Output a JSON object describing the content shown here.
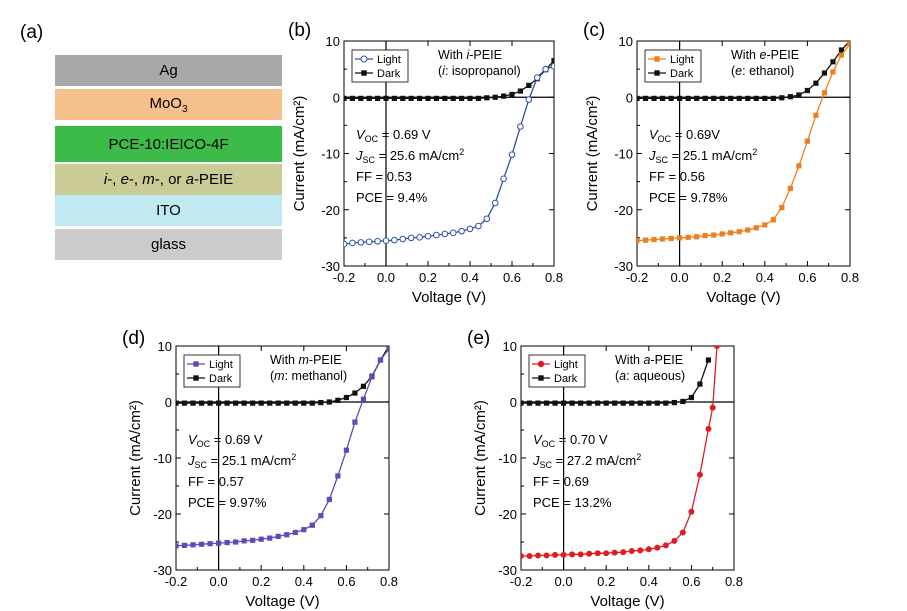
{
  "panel_labels": [
    "(a)",
    "(b)",
    "(c)",
    "(d)",
    "(e)"
  ],
  "device_stack": {
    "layers": [
      {
        "name": "Ag",
        "color": "#a8a8a8"
      },
      {
        "name": "MoO3",
        "color": "#f6c08c"
      },
      {
        "name": "PCE-10:IEICO-4F",
        "color": "#3cba4a"
      },
      {
        "name": "i-, e-, m-, or a-PEIE",
        "color": "#cbcb96"
      },
      {
        "name": "ITO",
        "color": "#c0e9f2"
      },
      {
        "name": "glass",
        "color": "#cbcbcb"
      }
    ],
    "moo3_base": "MoO",
    "moo3_sub": "3",
    "peie_prefix_1": "i",
    "peie_sep_1": "-, ",
    "peie_prefix_2": "e",
    "peie_sep_2": "-, ",
    "peie_prefix_3": "m",
    "peie_sep_3": "-, or ",
    "peie_prefix_4": "a",
    "peie_suffix": "-PEIE"
  },
  "chart_data": [
    {
      "panel": "(b)",
      "type": "line",
      "xlabel": "Voltage (V)",
      "ylabel": "Current (mA/cm²)",
      "xlim": [
        -0.2,
        0.8
      ],
      "ylim": [
        -30,
        10
      ],
      "xticks": [
        -0.2,
        0.0,
        0.2,
        0.4,
        0.6,
        0.8
      ],
      "xtick_labels": [
        "-0.2",
        "0.0",
        "0.2",
        "0.4",
        "0.6",
        "0.8"
      ],
      "yticks": [
        -30,
        -20,
        -10,
        0,
        10
      ],
      "ytick_labels": [
        "-30",
        "-20",
        "-10",
        "0",
        "10"
      ],
      "legend": [
        "Light",
        "Dark"
      ],
      "annotation": {
        "title_prefix": "With ",
        "title_italic": "i",
        "title_suffix": "-PEIE",
        "solvent_italic": "i",
        "solvent_text": ": isopropanol"
      },
      "params": {
        "voc": "= 0.69 V",
        "jsc": "= 25.6 mA/cm",
        "ff": "FF = 0.53",
        "pce": "PCE = 9.4%"
      },
      "light_color": "#2e4fa8",
      "light_marker": "open-circle",
      "series": [
        {
          "name": "Light",
          "x": [
            -0.2,
            -0.16,
            -0.12,
            -0.08,
            -0.04,
            0.0,
            0.04,
            0.08,
            0.12,
            0.16,
            0.2,
            0.24,
            0.28,
            0.32,
            0.36,
            0.4,
            0.44,
            0.48,
            0.52,
            0.56,
            0.6,
            0.64,
            0.68,
            0.72,
            0.76,
            0.8
          ],
          "values": [
            -26.1,
            -25.9,
            -25.8,
            -25.7,
            -25.6,
            -25.5,
            -25.4,
            -25.2,
            -25.0,
            -24.9,
            -24.7,
            -24.5,
            -24.3,
            -24.1,
            -23.8,
            -23.4,
            -22.9,
            -21.6,
            -18.8,
            -14.5,
            -10.2,
            -5.2,
            -0.4,
            3.5,
            5.0,
            5.5
          ]
        },
        {
          "name": "Dark",
          "x": [
            -0.2,
            -0.16,
            -0.12,
            -0.08,
            -0.04,
            0.0,
            0.04,
            0.08,
            0.12,
            0.16,
            0.2,
            0.24,
            0.28,
            0.32,
            0.36,
            0.4,
            0.44,
            0.48,
            0.52,
            0.56,
            0.6,
            0.64,
            0.68,
            0.72,
            0.76,
            0.8
          ],
          "values": [
            -0.2,
            -0.2,
            -0.2,
            -0.2,
            -0.2,
            -0.2,
            -0.2,
            -0.2,
            -0.2,
            -0.2,
            -0.2,
            -0.2,
            -0.2,
            -0.2,
            -0.2,
            -0.2,
            -0.2,
            -0.1,
            0.0,
            0.2,
            0.5,
            1.1,
            2.1,
            3.3,
            4.9,
            6.5
          ]
        }
      ]
    },
    {
      "panel": "(c)",
      "type": "line",
      "xlabel": "Voltage (V)",
      "ylabel": "Current (mA/cm²)",
      "xlim": [
        -0.2,
        0.8
      ],
      "ylim": [
        -30,
        10
      ],
      "xticks": [
        -0.2,
        0.0,
        0.2,
        0.4,
        0.6,
        0.8
      ],
      "xtick_labels": [
        "-0.2",
        "0.0",
        "0.2",
        "0.4",
        "0.6",
        "0.8"
      ],
      "yticks": [
        -30,
        -20,
        -10,
        0,
        10
      ],
      "ytick_labels": [
        "-30",
        "-20",
        "-10",
        "0",
        "10"
      ],
      "legend": [
        "Light",
        "Dark"
      ],
      "annotation": {
        "title_prefix": "With ",
        "title_italic": "e",
        "title_suffix": "-PEIE",
        "solvent_italic": "e",
        "solvent_text": ": ethanol"
      },
      "params": {
        "voc": "= 0.69V",
        "jsc": "= 25.1 mA/cm",
        "ff": "FF = 0.56",
        "pce": "PCE = 9.78%"
      },
      "light_color": "#f07e1f",
      "light_marker": "filled-square",
      "series": [
        {
          "name": "Light",
          "x": [
            -0.2,
            -0.16,
            -0.12,
            -0.08,
            -0.04,
            0.0,
            0.04,
            0.08,
            0.12,
            0.16,
            0.2,
            0.24,
            0.28,
            0.32,
            0.36,
            0.4,
            0.44,
            0.48,
            0.52,
            0.56,
            0.6,
            0.64,
            0.68,
            0.72,
            0.76,
            0.8
          ],
          "values": [
            -25.5,
            -25.4,
            -25.3,
            -25.2,
            -25.1,
            -25.0,
            -24.9,
            -24.8,
            -24.6,
            -24.5,
            -24.3,
            -24.1,
            -23.9,
            -23.6,
            -23.2,
            -22.7,
            -21.8,
            -19.6,
            -16.2,
            -12.2,
            -7.8,
            -3.2,
            0.8,
            4.5,
            7.5,
            9.5
          ]
        },
        {
          "name": "Dark",
          "x": [
            -0.2,
            -0.16,
            -0.12,
            -0.08,
            -0.04,
            0.0,
            0.04,
            0.08,
            0.12,
            0.16,
            0.2,
            0.24,
            0.28,
            0.32,
            0.36,
            0.4,
            0.44,
            0.48,
            0.52,
            0.56,
            0.6,
            0.64,
            0.68,
            0.72,
            0.76,
            0.8
          ],
          "values": [
            -0.2,
            -0.2,
            -0.2,
            -0.2,
            -0.2,
            -0.2,
            -0.2,
            -0.2,
            -0.2,
            -0.2,
            -0.2,
            -0.2,
            -0.2,
            -0.2,
            -0.2,
            -0.2,
            -0.2,
            -0.1,
            0.1,
            0.4,
            1.2,
            2.5,
            4.3,
            6.3,
            8.4,
            10.0
          ]
        }
      ]
    },
    {
      "panel": "(d)",
      "type": "line",
      "xlabel": "Voltage (V)",
      "ylabel": "Current (mA/cm²)",
      "xlim": [
        -0.2,
        0.8
      ],
      "ylim": [
        -30,
        10
      ],
      "xticks": [
        -0.2,
        0.0,
        0.2,
        0.4,
        0.6,
        0.8
      ],
      "xtick_labels": [
        "-0.2",
        "0.0",
        "0.2",
        "0.4",
        "0.6",
        "0.8"
      ],
      "yticks": [
        -30,
        -20,
        -10,
        0,
        10
      ],
      "ytick_labels": [
        "-30",
        "-20",
        "-10",
        "0",
        "10"
      ],
      "legend": [
        "Light",
        "Dark"
      ],
      "annotation": {
        "title_prefix": "With ",
        "title_italic": "m",
        "title_suffix": "-PEIE",
        "solvent_italic": "m",
        "solvent_text": ": methanol"
      },
      "params": {
        "voc": "= 0.69 V",
        "jsc": "= 25.1 mA/cm",
        "ff": "FF = 0.57",
        "pce": "PCE = 9.97%"
      },
      "light_color": "#6248b8",
      "light_marker": "filled-square",
      "series": [
        {
          "name": "Light",
          "x": [
            -0.2,
            -0.16,
            -0.12,
            -0.08,
            -0.04,
            0.0,
            0.04,
            0.08,
            0.12,
            0.16,
            0.2,
            0.24,
            0.28,
            0.32,
            0.36,
            0.4,
            0.44,
            0.48,
            0.52,
            0.56,
            0.6,
            0.64,
            0.68,
            0.72,
            0.76,
            0.8
          ],
          "values": [
            -25.7,
            -25.6,
            -25.5,
            -25.4,
            -25.3,
            -25.2,
            -25.1,
            -25.0,
            -24.8,
            -24.7,
            -24.5,
            -24.3,
            -24.0,
            -23.7,
            -23.3,
            -22.8,
            -22.0,
            -20.3,
            -17.4,
            -13.2,
            -8.6,
            -3.6,
            0.5,
            4.5,
            7.5,
            9.5
          ]
        },
        {
          "name": "Dark",
          "x": [
            -0.2,
            -0.16,
            -0.12,
            -0.08,
            -0.04,
            0.0,
            0.04,
            0.08,
            0.12,
            0.16,
            0.2,
            0.24,
            0.28,
            0.32,
            0.36,
            0.4,
            0.44,
            0.48,
            0.52,
            0.56,
            0.6,
            0.64,
            0.68,
            0.72,
            0.76,
            0.8
          ],
          "values": [
            -0.2,
            -0.2,
            -0.2,
            -0.2,
            -0.2,
            -0.2,
            -0.2,
            -0.2,
            -0.2,
            -0.2,
            -0.2,
            -0.2,
            -0.2,
            -0.2,
            -0.2,
            -0.2,
            -0.2,
            -0.1,
            0.0,
            0.3,
            0.8,
            1.6,
            2.8,
            4.6,
            7.5,
            10.0
          ]
        }
      ]
    },
    {
      "panel": "(e)",
      "type": "line",
      "xlabel": "Voltage (V)",
      "ylabel": "Current (mA/cm²)",
      "xlim": [
        -0.2,
        0.8
      ],
      "ylim": [
        -30,
        10
      ],
      "xticks": [
        -0.2,
        0.0,
        0.2,
        0.4,
        0.6,
        0.8
      ],
      "xtick_labels": [
        "-0.2",
        "0.0",
        "0.2",
        "0.4",
        "0.6",
        "0.8"
      ],
      "yticks": [
        -30,
        -20,
        -10,
        0,
        10
      ],
      "ytick_labels": [
        "-30",
        "-20",
        "-10",
        "0",
        "10"
      ],
      "legend": [
        "Light",
        "Dark"
      ],
      "annotation": {
        "title_prefix": "With ",
        "title_italic": "a",
        "title_suffix": "-PEIE",
        "solvent_italic": "a",
        "solvent_text": ": aqueous"
      },
      "params": {
        "voc": "= 0.70 V",
        "jsc": "= 27.2 mA/cm",
        "ff": "FF = 0.69",
        "pce": "PCE = 13.2%"
      },
      "light_color": "#e01b24",
      "light_marker": "filled-circle",
      "series": [
        {
          "name": "Light",
          "x": [
            -0.2,
            -0.16,
            -0.12,
            -0.08,
            -0.04,
            0.0,
            0.04,
            0.08,
            0.12,
            0.16,
            0.2,
            0.24,
            0.28,
            0.32,
            0.36,
            0.4,
            0.44,
            0.48,
            0.52,
            0.56,
            0.6,
            0.64,
            0.68,
            0.7,
            0.72
          ],
          "values": [
            -27.5,
            -27.5,
            -27.4,
            -27.4,
            -27.3,
            -27.3,
            -27.2,
            -27.2,
            -27.1,
            -27.0,
            -27.0,
            -26.9,
            -26.8,
            -26.6,
            -26.5,
            -26.3,
            -26.0,
            -25.6,
            -24.8,
            -23.3,
            -19.6,
            -13.0,
            -4.8,
            -1.0,
            10.0
          ]
        },
        {
          "name": "Dark",
          "x": [
            -0.2,
            -0.16,
            -0.12,
            -0.08,
            -0.04,
            0.0,
            0.04,
            0.08,
            0.12,
            0.16,
            0.2,
            0.24,
            0.28,
            0.32,
            0.36,
            0.4,
            0.44,
            0.48,
            0.52,
            0.56,
            0.6,
            0.64,
            0.68
          ],
          "values": [
            -0.2,
            -0.2,
            -0.2,
            -0.2,
            -0.2,
            -0.2,
            -0.2,
            -0.2,
            -0.2,
            -0.2,
            -0.2,
            -0.2,
            -0.2,
            -0.2,
            -0.2,
            -0.2,
            -0.2,
            -0.2,
            -0.1,
            0.1,
            0.8,
            3.2,
            7.5
          ]
        }
      ]
    }
  ]
}
